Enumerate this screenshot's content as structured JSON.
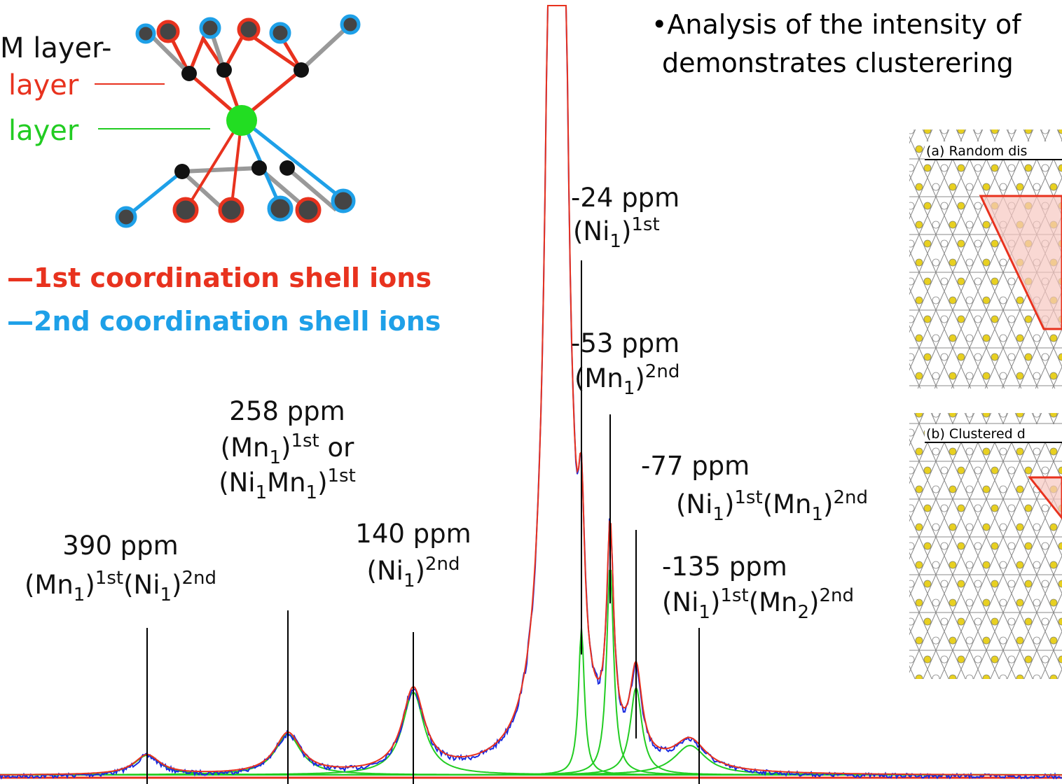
{
  "structure": {
    "tm_layer": "M layer-",
    "red_layer": "layer",
    "green_layer": "layer",
    "legend_1st": "—1st coordination shell ions",
    "legend_2nd": "—2nd coordination shell ions"
  },
  "bullet": {
    "line1": "•Analysis of the intensity of",
    "line2": "demonstrates clusterering"
  },
  "insets": {
    "a": "(a) Random dis",
    "b": "(b) Clustered d"
  },
  "peaks": [
    {
      "ppm": "390 ppm",
      "assignment": [
        [
          {
            "text": "(Mn"
          },
          {
            "sub": "1"
          },
          {
            "text": ")"
          },
          {
            "sup": "1st"
          },
          {
            "text": "(Ni"
          },
          {
            "sub": "1"
          },
          {
            "text": ")"
          },
          {
            "sup": "2nd"
          }
        ]
      ]
    },
    {
      "ppm": "258 ppm",
      "assignment": [
        [
          {
            "text": "(Mn"
          },
          {
            "sub": "1"
          },
          {
            "text": ")"
          },
          {
            "sup": "1st"
          },
          {
            "text": " or"
          }
        ],
        [
          {
            "text": "(Ni"
          },
          {
            "sub": "1"
          },
          {
            "text": "Mn"
          },
          {
            "sub": "1"
          },
          {
            "text": ")"
          },
          {
            "sup": "1st"
          }
        ]
      ]
    },
    {
      "ppm": "140 ppm",
      "assignment": [
        [
          {
            "text": "(Ni"
          },
          {
            "sub": "1"
          },
          {
            "text": ")"
          },
          {
            "sup": "2nd"
          }
        ]
      ]
    },
    {
      "ppm": "-24 ppm",
      "assignment": [
        [
          {
            "text": "(Ni"
          },
          {
            "sub": "1"
          },
          {
            "text": ")"
          },
          {
            "sup": "1st"
          }
        ]
      ]
    },
    {
      "ppm": "-53 ppm",
      "assignment": [
        [
          {
            "text": "(Mn"
          },
          {
            "sub": "1"
          },
          {
            "text": ")"
          },
          {
            "sup": "2nd"
          }
        ]
      ]
    },
    {
      "ppm": "-77 ppm",
      "assignment": [
        [
          {
            "text": "(Ni"
          },
          {
            "sub": "1"
          },
          {
            "text": ")"
          },
          {
            "sup": "1st"
          },
          {
            "text": "(Mn"
          },
          {
            "sub": "1"
          },
          {
            "text": ")"
          },
          {
            "sup": "2nd"
          }
        ]
      ]
    },
    {
      "ppm": "-135 ppm",
      "assignment": [
        [
          {
            "text": "(Ni"
          },
          {
            "sub": "1"
          },
          {
            "text": ")"
          },
          {
            "sup": "1st"
          },
          {
            "text": "(Mn"
          },
          {
            "sub": "2"
          },
          {
            "text": ")"
          },
          {
            "sup": "2nd"
          }
        ]
      ]
    }
  ]
}
